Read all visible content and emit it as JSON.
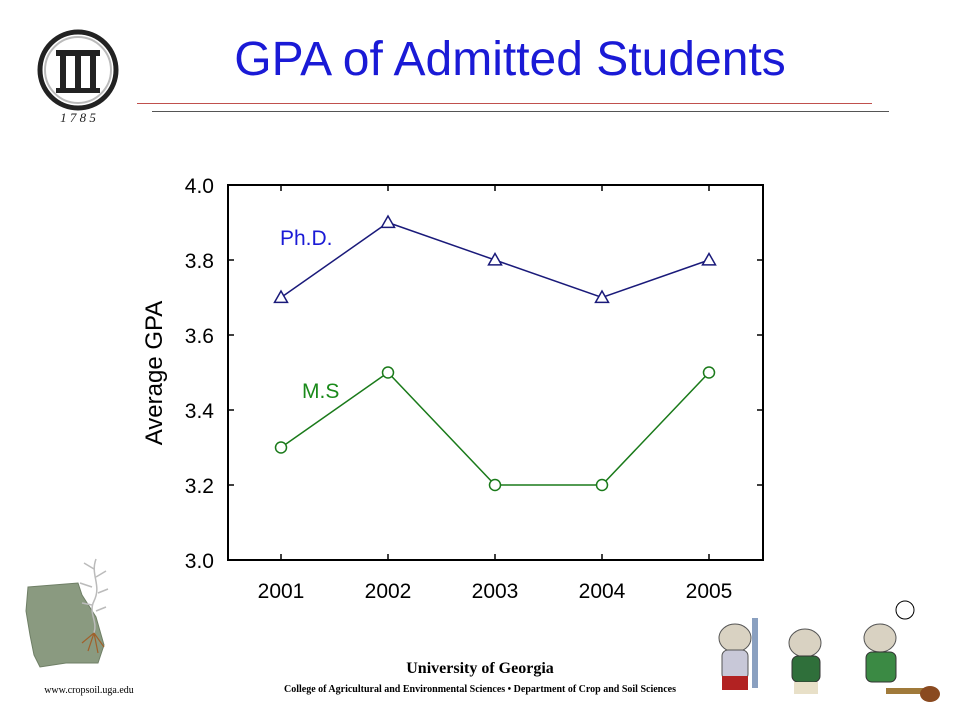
{
  "header": {
    "title": "GPA of Admitted Students",
    "logo_year": "1 7 8 5"
  },
  "chart_data": {
    "type": "line",
    "categories": [
      "2001",
      "2002",
      "2003",
      "2004",
      "2005"
    ],
    "series": [
      {
        "name": "Ph.D.",
        "values": [
          3.7,
          3.9,
          3.8,
          3.7,
          3.8
        ],
        "color": "#1a1a7a",
        "marker": "triangle"
      },
      {
        "name": "M.S",
        "values": [
          3.3,
          3.5,
          3.2,
          3.2,
          3.5
        ],
        "color": "#1a7a1a",
        "marker": "circle"
      }
    ],
    "ylabel": "Average GPA",
    "ylim": [
      3.0,
      4.0
    ],
    "yticks": [
      "3.0",
      "3.2",
      "3.4",
      "3.6",
      "3.8",
      "4.0"
    ],
    "grid": false
  },
  "footer": {
    "university": "University of Georgia",
    "department": "College of Agricultural and Environmental Sciences • Department of Crop and Soil Sciences",
    "url": "www.cropsoil.uga.edu"
  },
  "colors": {
    "title": "#1a1ad6",
    "phd_line": "#1a1a7a",
    "ms_line": "#1a7a1a"
  }
}
